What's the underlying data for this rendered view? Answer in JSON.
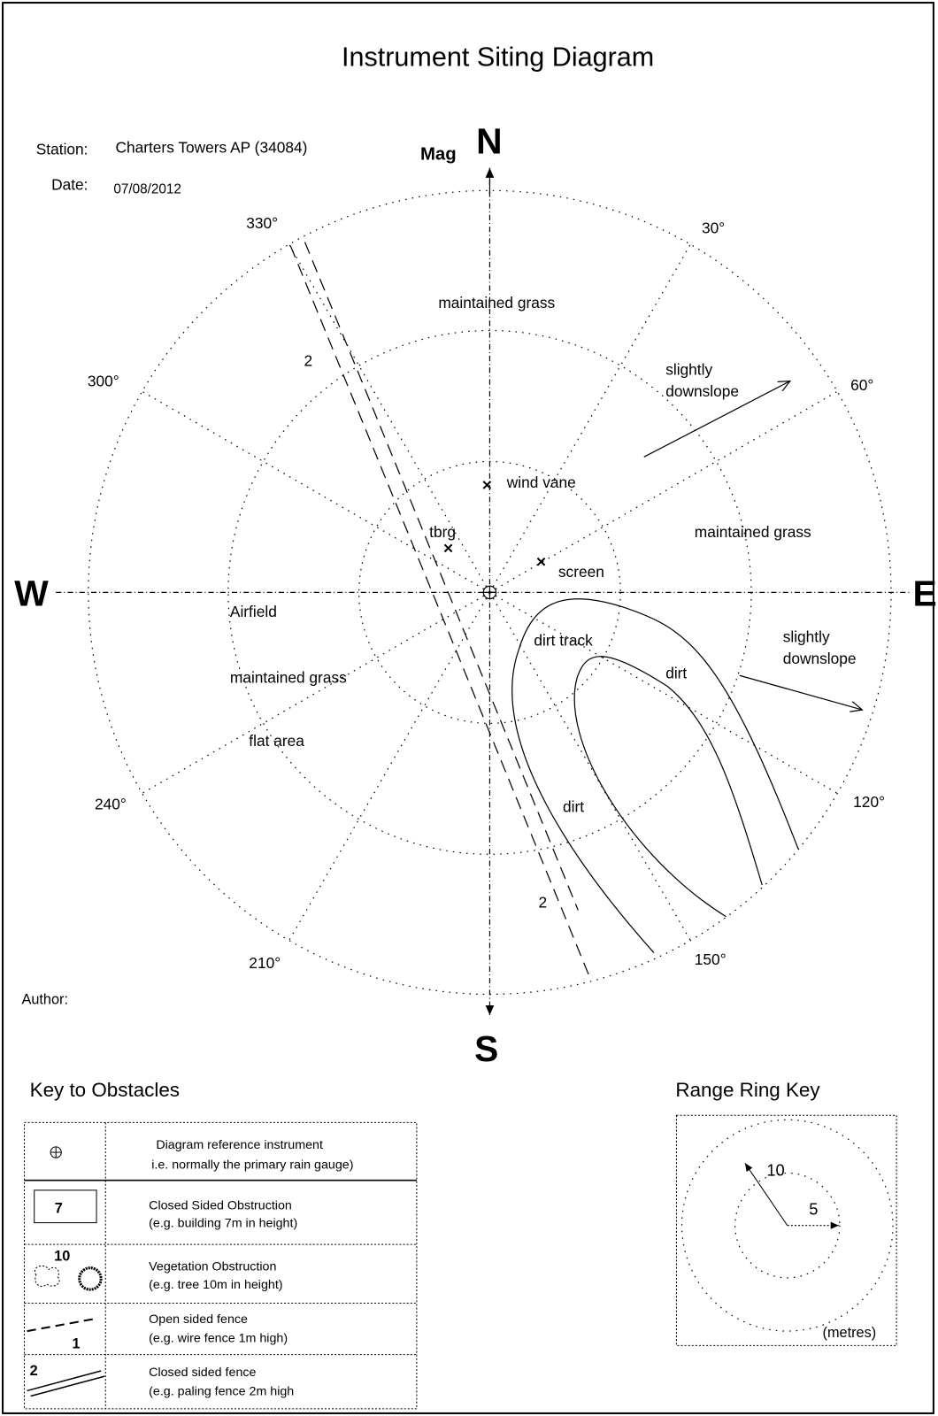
{
  "header": {
    "title": "Instrument Siting Diagram",
    "station_label": "Station:",
    "station": "Charters Towers AP (34084)",
    "date_label": "Date:",
    "date": "07/08/2012",
    "author_label": "Author:"
  },
  "compass": {
    "mag": "Mag",
    "north": "N",
    "south": "S",
    "west": "W",
    "east": "E",
    "bearings": [
      "330°",
      "30°",
      "300°",
      "60°",
      "240°",
      "120°",
      "210°",
      "150°"
    ]
  },
  "labels": [
    "maintained grass",
    "wind vane",
    "tbrg",
    "screen",
    "maintained grass",
    "Airfield",
    "dirt track",
    "dirt",
    "maintained grass",
    "flat area",
    "dirt",
    "2",
    "2"
  ],
  "downslope": [
    [
      "slightly",
      "downslope"
    ],
    [
      "slightly",
      "downslope"
    ]
  ],
  "key": {
    "title": "Key to Obstacles",
    "rows": [
      {
        "lines": [
          "Diagram reference instrument",
          "i.e. normally the primary rain gauge)"
        ]
      },
      {
        "symbol": "7",
        "lines": [
          "Closed Sided Obstruction",
          "(e.g. building 7m in height)"
        ]
      },
      {
        "symbol": "10",
        "lines": [
          "Vegetation Obstruction",
          "(e.g. tree 10m in height)"
        ]
      },
      {
        "symbol": "1",
        "lines": [
          "Open sided fence",
          "(e.g. wire fence 1m high)"
        ]
      },
      {
        "symbol": "2",
        "lines": [
          "Closed sided fence",
          "(e.g. paling fence 2m high"
        ]
      }
    ]
  },
  "range_key": {
    "title": "Range Ring Key",
    "outer": "10",
    "inner": "5",
    "unit": "(metres)"
  }
}
